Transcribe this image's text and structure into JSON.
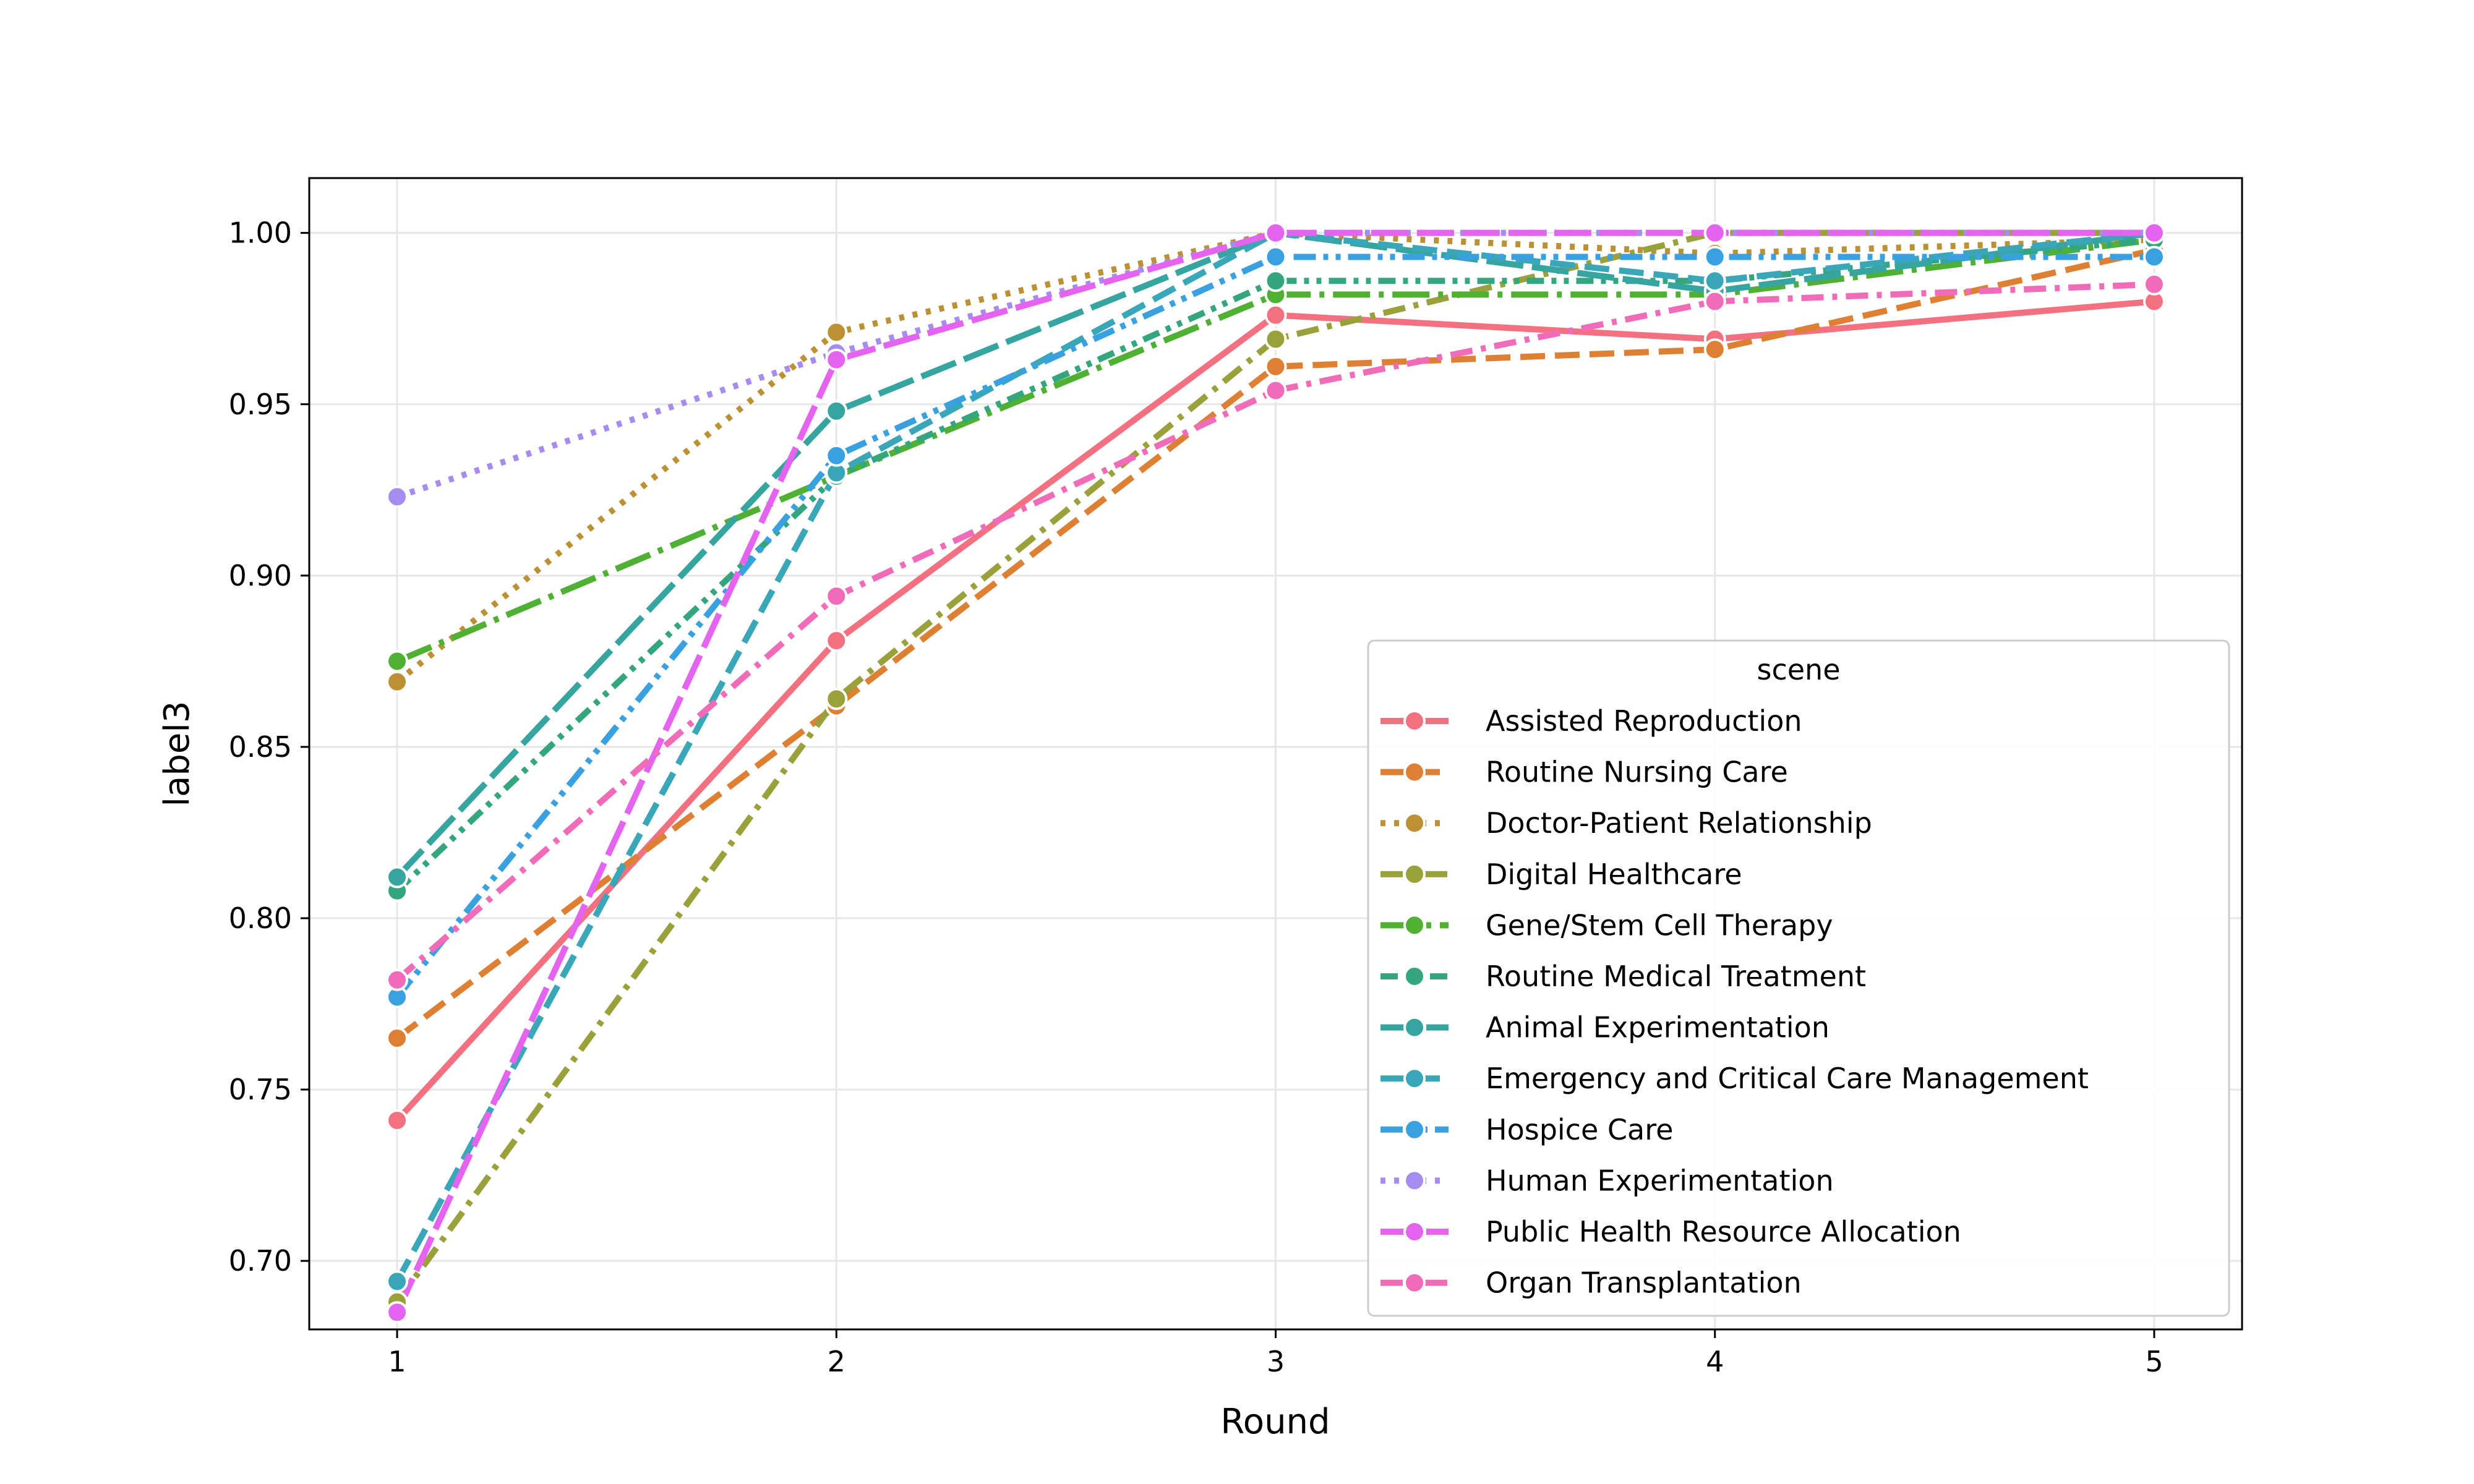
{
  "chart_data": {
    "type": "line",
    "title": "",
    "xlabel": "Round",
    "ylabel": "label3",
    "x": [
      1,
      2,
      3,
      4,
      5
    ],
    "xlim": [
      0.8,
      5.2
    ],
    "ylim": [
      0.68,
      1.016
    ],
    "xticks": [
      "1",
      "2",
      "3",
      "4",
      "5"
    ],
    "yticks": [
      "0.70",
      "0.75",
      "0.80",
      "0.85",
      "0.90",
      "0.95",
      "1.00"
    ],
    "ytick_values": [
      0.7,
      0.75,
      0.8,
      0.85,
      0.9,
      0.95,
      1.0
    ],
    "grid": true,
    "legend": {
      "title": "scene",
      "position": "lower-right"
    },
    "series": [
      {
        "name": "Assisted Reproduction",
        "color": "#f2707f",
        "dash": "solid",
        "values": [
          0.741,
          0.881,
          0.976,
          0.969,
          0.98
        ]
      },
      {
        "name": "Routine Nursing Care",
        "color": "#de8033",
        "dash": "dash",
        "values": [
          0.765,
          0.862,
          0.961,
          0.966,
          0.995
        ]
      },
      {
        "name": "Doctor-Patient Relationship",
        "color": "#bb9133",
        "dash": "dot",
        "values": [
          0.869,
          0.971,
          1.0,
          0.994,
          0.998
        ]
      },
      {
        "name": "Digital Healthcare",
        "color": "#9aa03a",
        "dash": "dashdot",
        "values": [
          0.688,
          0.864,
          0.969,
          1.0,
          1.0
        ]
      },
      {
        "name": "Gene/Stem Cell Therapy",
        "color": "#4fb034",
        "dash": "dashdotlong",
        "values": [
          0.875,
          0.929,
          0.982,
          0.982,
          0.998
        ]
      },
      {
        "name": "Routine Medical Treatment",
        "color": "#34a67d",
        "dash": "dashdot2",
        "values": [
          0.808,
          0.929,
          0.986,
          0.986,
          0.998
        ]
      },
      {
        "name": "Animal Experimentation",
        "color": "#37a59f",
        "dash": "longdash",
        "values": [
          0.812,
          0.948,
          1.0,
          0.983,
          1.0
        ]
      },
      {
        "name": "Emergency and Critical Care Management",
        "color": "#39a7b7",
        "dash": "dash",
        "values": [
          0.694,
          0.93,
          1.0,
          0.986,
          1.0
        ]
      },
      {
        "name": "Hospice Care",
        "color": "#3aa1e0",
        "dash": "dashdotdot",
        "values": [
          0.777,
          0.935,
          0.993,
          0.993,
          0.993
        ]
      },
      {
        "name": "Human Experimentation",
        "color": "#a68cef",
        "dash": "dot",
        "values": [
          0.923,
          0.965,
          1.0,
          1.0,
          1.0
        ]
      },
      {
        "name": "Public Health Resource Allocation",
        "color": "#e463ef",
        "dash": "longdash",
        "values": [
          0.685,
          0.963,
          1.0,
          1.0,
          1.0
        ]
      },
      {
        "name": "Organ Transplantation",
        "color": "#f06bb8",
        "dash": "dashdot",
        "values": [
          0.782,
          0.894,
          0.954,
          0.98,
          0.985
        ]
      }
    ]
  }
}
